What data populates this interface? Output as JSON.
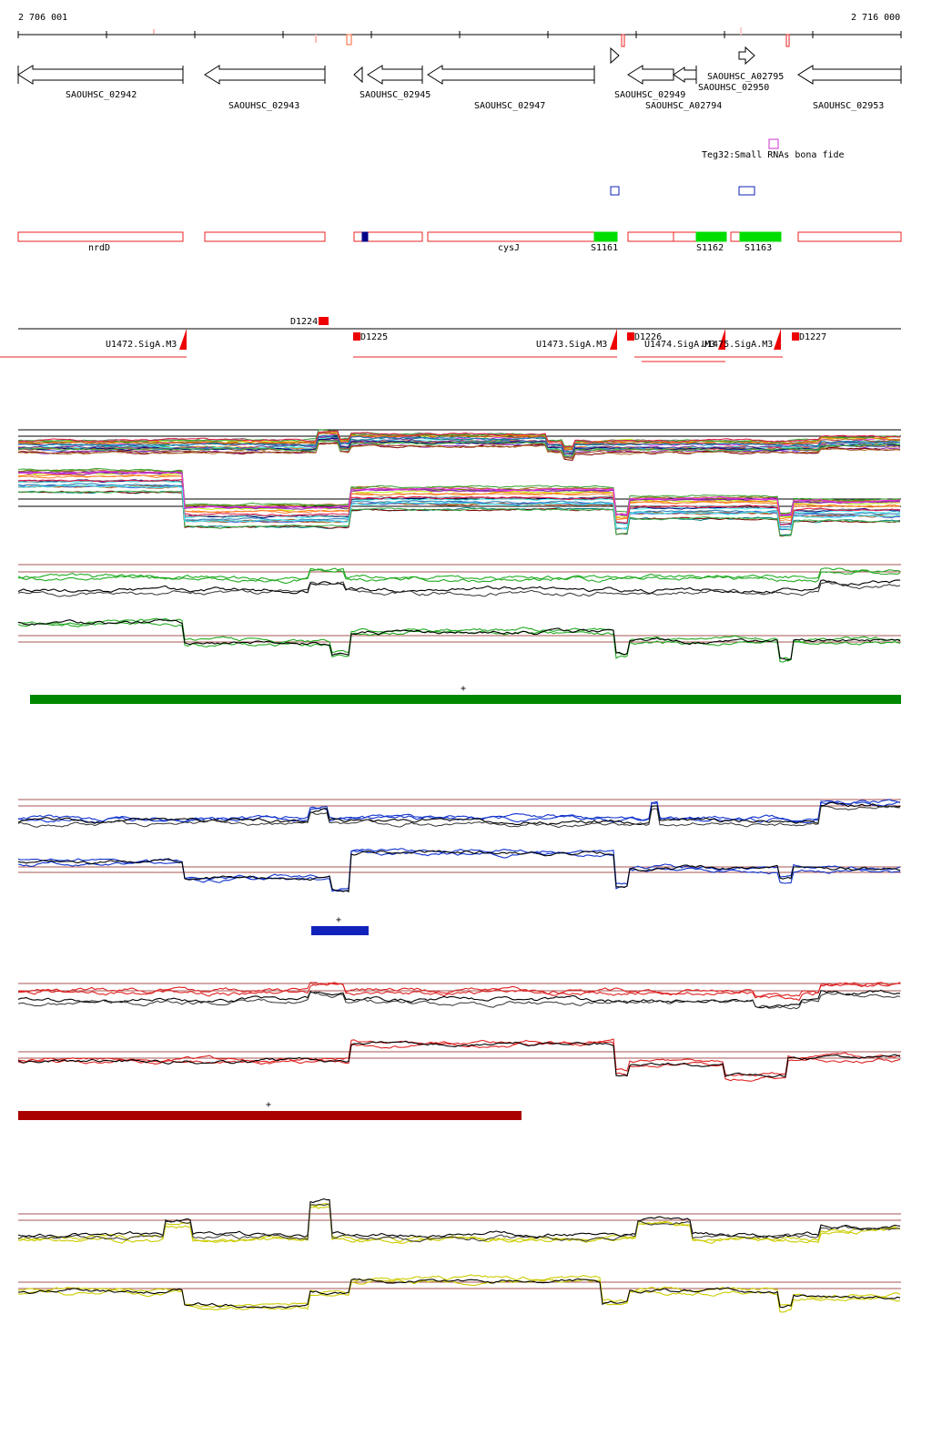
{
  "ruler": {
    "start_label": "2 706 001",
    "end_label": "2 716 000"
  },
  "genes": [
    {
      "id": "SAOUHSC_02942"
    },
    {
      "id": "SAOUHSC_02943"
    },
    {
      "id": "SAOUHSC_02945"
    },
    {
      "id": "SAOUHSC_02947"
    },
    {
      "id": "SAOUHSC_02949"
    },
    {
      "id": "SAOUHSC_02950"
    },
    {
      "id": "SAOUHSC_A02794"
    },
    {
      "id": "SAOUHSC_A02795"
    },
    {
      "id": "SAOUHSC_02953"
    }
  ],
  "srna": {
    "label": "Teg32:Small RNAs bona fide",
    "color": "#cc33cc"
  },
  "annotations": {
    "gene_names": [
      "nrdD",
      "cysJ"
    ],
    "segments": [
      "S1161",
      "S1162",
      "S1163"
    ],
    "red_color": "#ee2222",
    "green_color": "#00dd00"
  },
  "transcripts": {
    "downshifts": [
      "D1224",
      "D1225",
      "D1226",
      "D1227"
    ],
    "upshifts": [
      "U1472.SigA.M3",
      "U1473.SigA.M3",
      "U1474.SigA.M3",
      "U1475.SigA.M3"
    ]
  },
  "condition_colors": {
    "green": "#008800",
    "blue": "#1122bb",
    "red": "#aa0000",
    "yellow": "#cccc00"
  },
  "markers": {
    "plus": "+"
  }
}
